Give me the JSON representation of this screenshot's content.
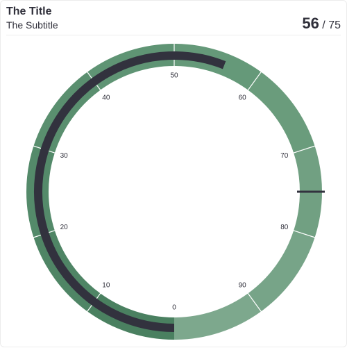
{
  "header": {
    "title": "The Title",
    "subtitle": "The Subtitle",
    "value": "56",
    "separator": "/",
    "max": "75"
  },
  "chart_data": {
    "type": "radial-gauge",
    "title": "The Title",
    "subtitle": "The Subtitle",
    "min": 0,
    "max": 100,
    "value": 56,
    "target": 75,
    "tick_labels": [
      "0",
      "10",
      "20",
      "30",
      "40",
      "50",
      "60",
      "70",
      "80",
      "90"
    ],
    "tick_values": [
      0,
      10,
      20,
      30,
      40,
      50,
      60,
      70,
      80,
      90
    ],
    "bands": [
      {
        "from": 0,
        "to": 10,
        "color": "#4a8060"
      },
      {
        "from": 10,
        "to": 20,
        "color": "#4f8565"
      },
      {
        "from": 20,
        "to": 30,
        "color": "#548a6a"
      },
      {
        "from": 30,
        "to": 40,
        "color": "#5a8f6f"
      },
      {
        "from": 40,
        "to": 50,
        "color": "#5f9474"
      },
      {
        "from": 50,
        "to": 60,
        "color": "#659979"
      },
      {
        "from": 60,
        "to": 70,
        "color": "#6a9c7c"
      },
      {
        "from": 70,
        "to": 80,
        "color": "#71a082"
      },
      {
        "from": 80,
        "to": 90,
        "color": "#77a488"
      },
      {
        "from": 90,
        "to": 100,
        "color": "#7da88d"
      }
    ],
    "value_color": "#32323e",
    "target_color": "#32323e"
  }
}
